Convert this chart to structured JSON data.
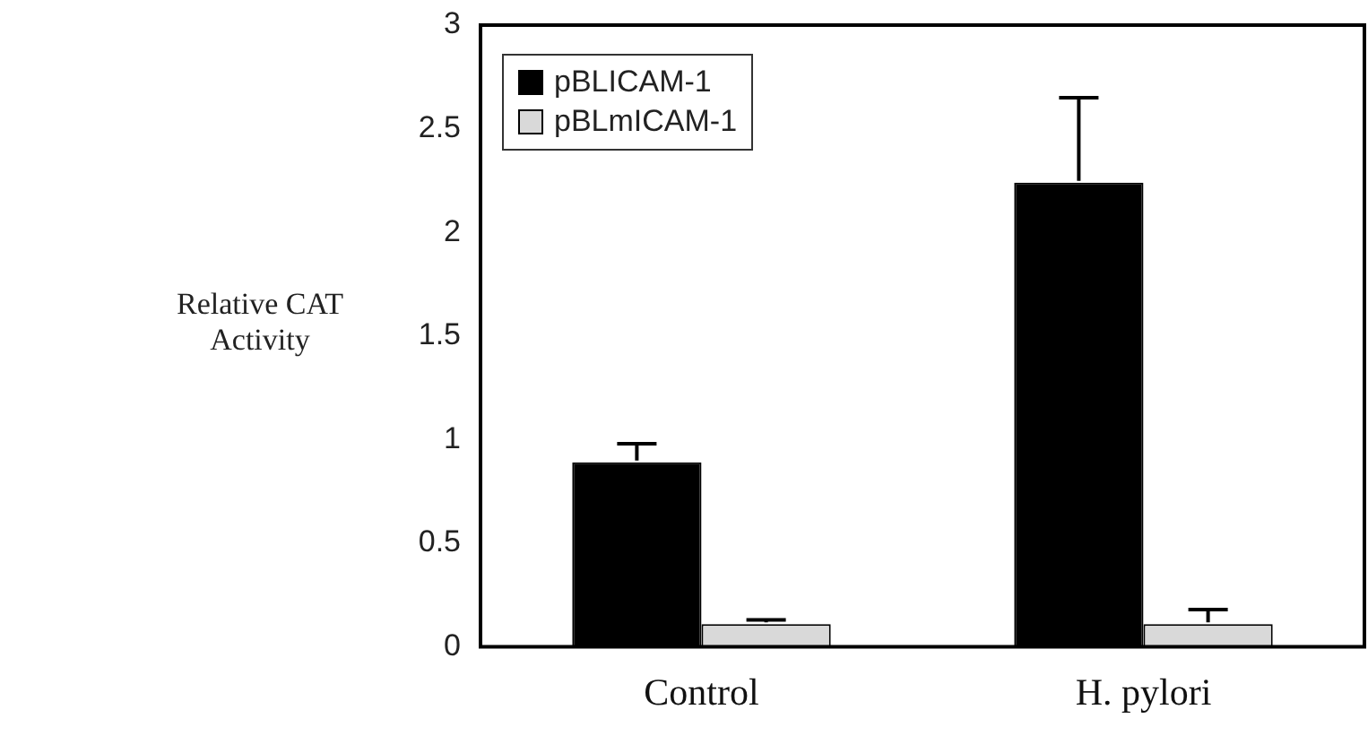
{
  "chart_data": {
    "type": "bar",
    "ylabel": "Relative CAT Activity",
    "categories": [
      "Control",
      "H. pylori"
    ],
    "series": [
      {
        "name": "pBLICAM-1",
        "color": "#000000",
        "values": [
          0.89,
          2.24
        ],
        "errors": [
          0.09,
          0.41
        ]
      },
      {
        "name": "pBLmICAM-1",
        "color": "#d9d9d9",
        "values": [
          0.11,
          0.11
        ],
        "errors": [
          0.02,
          0.07
        ]
      }
    ],
    "ylim": [
      0,
      3
    ],
    "yticks": [
      0,
      0.5,
      1,
      1.5,
      2,
      2.5,
      3
    ],
    "grid": false,
    "legend": "top left"
  }
}
